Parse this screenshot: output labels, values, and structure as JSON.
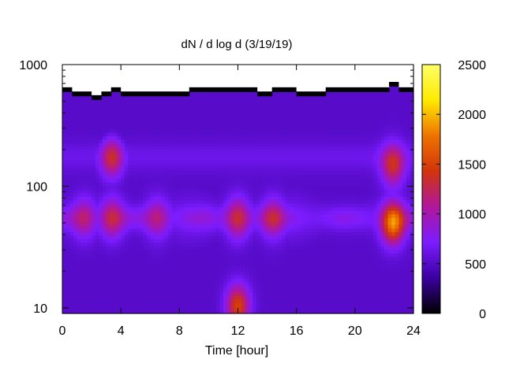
{
  "chart_data": {
    "type": "heatmap",
    "title": "dN / d log d (3/19/19)",
    "xlabel": "Time [hour]",
    "ylabel": "",
    "xlim": [
      0,
      24
    ],
    "ylim": [
      9,
      1000
    ],
    "y_scale": "log",
    "x_ticks": [
      0,
      4,
      8,
      12,
      16,
      20,
      24
    ],
    "x_tick_labels": [
      "0",
      "4",
      "8",
      "12",
      "16",
      "20",
      "24"
    ],
    "y_ticks": [
      10,
      100,
      1000
    ],
    "y_tick_labels": [
      "10",
      "100",
      "1000"
    ],
    "colorbar": {
      "range": [
        0,
        2500
      ],
      "ticks": [
        0,
        500,
        1000,
        1500,
        2000,
        2500
      ],
      "tick_labels": [
        "0",
        "500",
        "1000",
        "1500",
        "2000",
        "2500"
      ],
      "colormap": [
        "#000000",
        "#3b00a0",
        "#7c1cff",
        "#b0179c",
        "#d1340b",
        "#ee7300",
        "#ffea00",
        "#ffff66"
      ]
    },
    "upper_data_limit": [
      [
        0,
        650
      ],
      [
        0.67,
        600
      ],
      [
        2.0,
        560
      ],
      [
        2.67,
        600
      ],
      [
        3.33,
        650
      ],
      [
        4.0,
        600
      ],
      [
        8.67,
        650
      ],
      [
        13.33,
        600
      ],
      [
        14.33,
        650
      ],
      [
        16.0,
        600
      ],
      [
        18.0,
        650
      ],
      [
        22.33,
        720
      ],
      [
        23.0,
        650
      ],
      [
        24,
        650
      ]
    ],
    "features": [
      {
        "description_value": "background band",
        "d_center": 55,
        "d_spread_decades": 1.1,
        "value": 600
      },
      {
        "x_center": 3.4,
        "d_center": 175,
        "value": 1500
      },
      {
        "x_center": 3.4,
        "d_center": 55,
        "value": 1300
      },
      {
        "x_center": 1.5,
        "d_center": 55,
        "value": 1150
      },
      {
        "x_center": 6.5,
        "d_center": 55,
        "value": 1150
      },
      {
        "x_center": 12.0,
        "d_center": 55,
        "value": 1400
      },
      {
        "x_center": 12.0,
        "d_center": 10.5,
        "value": 1700
      },
      {
        "x_center": 14.4,
        "d_center": 55,
        "value": 1200
      },
      {
        "x_center": 22.6,
        "d_center": 50,
        "value": 2000
      },
      {
        "x_center": 22.6,
        "d_center": 150,
        "value": 1500
      }
    ]
  }
}
